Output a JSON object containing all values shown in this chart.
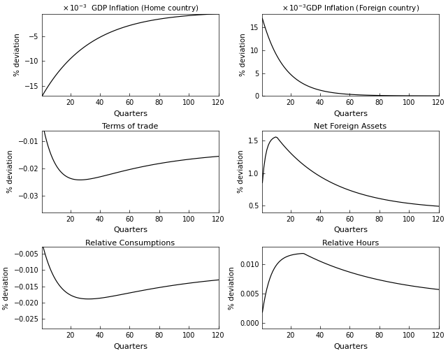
{
  "ylabel": "% deviation",
  "xlabel": "Quarters",
  "n_quarters": 120,
  "line_color": "#000000",
  "bg_color": "#ffffff",
  "xticks": [
    20,
    40,
    60,
    80,
    100,
    120
  ],
  "figsize": [
    6.41,
    5.05
  ],
  "dpi": 100,
  "panels": [
    {
      "title": "x 10^{-3} GDP Inflation (Home country)",
      "use_sci": true,
      "sci_space": true,
      "ylim": [
        -17.0,
        -0.5
      ],
      "yticks": [
        -15,
        -10,
        -5
      ],
      "curve": "gdp_home"
    },
    {
      "title": "x 10^{-3}GDP Inflation (Foreign country)",
      "use_sci": true,
      "sci_space": false,
      "ylim": [
        0.0,
        18.0
      ],
      "yticks": [
        0,
        5,
        10,
        15
      ],
      "curve": "gdp_foreign"
    },
    {
      "title": "Terms of trade",
      "use_sci": false,
      "ylim": [
        -0.036,
        -0.006
      ],
      "yticks": [
        -0.03,
        -0.02,
        -0.01
      ],
      "curve": "terms_of_trade"
    },
    {
      "title": "Net Foreign Assets",
      "use_sci": false,
      "ylim": [
        0.4,
        1.65
      ],
      "yticks": [
        0.5,
        1.0,
        1.5
      ],
      "curve": "net_foreign_assets"
    },
    {
      "title": "Relative Consumptions",
      "use_sci": false,
      "ylim": [
        -0.028,
        -0.003
      ],
      "yticks": [
        -0.025,
        -0.02,
        -0.015,
        -0.01,
        -0.005
      ],
      "curve": "relative_consumptions"
    },
    {
      "title": "Relative Hours",
      "use_sci": false,
      "ylim": [
        -0.001,
        0.013
      ],
      "yticks": [
        0,
        0.005,
        0.01
      ],
      "curve": "relative_hours"
    }
  ]
}
